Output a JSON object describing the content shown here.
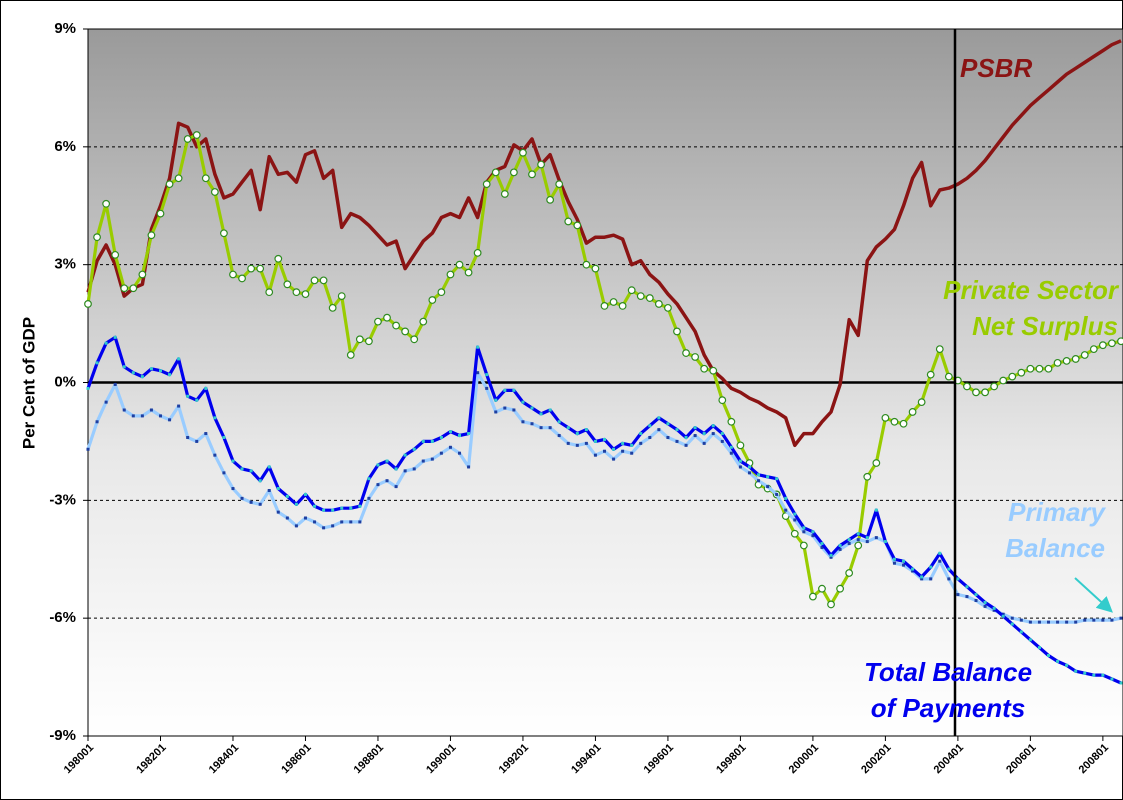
{
  "chart_data": {
    "type": "line",
    "y_label": "Per Cent of GDP",
    "categories": [
      "198001",
      null,
      null,
      null,
      null,
      null,
      null,
      null,
      "198201",
      null,
      null,
      null,
      null,
      null,
      null,
      null,
      "198401",
      null,
      null,
      null,
      null,
      null,
      null,
      null,
      "198601",
      null,
      null,
      null,
      null,
      null,
      null,
      null,
      "198801",
      null,
      null,
      null,
      null,
      null,
      null,
      null,
      "199001",
      null,
      null,
      null,
      null,
      null,
      null,
      null,
      "199201",
      null,
      null,
      null,
      null,
      null,
      null,
      null,
      "199401",
      null,
      null,
      null,
      null,
      null,
      null,
      null,
      "199601",
      null,
      null,
      null,
      null,
      null,
      null,
      null,
      "199801",
      null,
      null,
      null,
      null,
      null,
      null,
      null,
      "200001",
      null,
      null,
      null,
      null,
      null,
      null,
      null,
      "200201",
      null,
      null,
      null,
      null,
      null,
      null,
      null,
      "200401",
      null,
      null,
      null,
      null,
      null,
      null,
      null,
      "200601",
      null,
      null,
      null,
      null,
      null,
      null,
      null,
      "200801",
      null,
      null
    ],
    "ylim": [
      -9,
      9
    ],
    "yticks": [
      {
        "value": -9,
        "label": "-9%"
      },
      {
        "value": -6,
        "label": "-6%"
      },
      {
        "value": -3,
        "label": "-3%"
      },
      {
        "value": 0,
        "label": "0%"
      },
      {
        "value": 3,
        "label": "3%"
      },
      {
        "value": 6,
        "label": "6%"
      },
      {
        "value": 9,
        "label": "9%"
      }
    ],
    "grid": true,
    "series": [
      {
        "name": "PSBR",
        "color": "#8b1414",
        "values": [
          2.3,
          3.1,
          3.5,
          3.0,
          2.2,
          2.4,
          2.5,
          3.9,
          4.5,
          5.2,
          6.6,
          6.5,
          6.0,
          6.2,
          5.3,
          4.7,
          4.8,
          5.1,
          5.4,
          4.4,
          5.75,
          5.3,
          5.35,
          5.1,
          5.8,
          5.9,
          5.2,
          5.4,
          3.95,
          4.3,
          4.2,
          4.0,
          3.75,
          3.5,
          3.6,
          2.9,
          3.25,
          3.6,
          3.8,
          4.2,
          4.3,
          4.2,
          4.7,
          4.2,
          5.1,
          5.4,
          5.5,
          6.05,
          5.9,
          6.2,
          5.55,
          5.8,
          5.15,
          4.6,
          4.15,
          3.55,
          3.7,
          3.7,
          3.75,
          3.65,
          3.0,
          3.1,
          2.75,
          2.55,
          2.25,
          2.0,
          1.65,
          1.3,
          0.7,
          0.3,
          0.1,
          -0.15,
          -0.25,
          -0.4,
          -0.5,
          -0.65,
          -0.75,
          -0.9,
          -1.6,
          -1.3,
          -1.3,
          -1.0,
          -0.75,
          -0.05,
          1.6,
          1.2,
          3.1,
          3.45,
          3.65,
          3.9,
          4.5,
          5.2,
          5.6,
          4.5,
          4.9,
          4.95,
          5.05,
          5.2,
          5.4,
          5.65,
          5.95,
          6.25,
          6.55,
          6.8,
          7.05,
          7.25,
          7.45,
          7.65,
          7.85,
          8.0,
          8.15,
          8.3,
          8.45,
          8.6,
          8.7
        ]
      },
      {
        "name": "Private Sector Net Surplus",
        "color": "#99cc00",
        "values": [
          2.0,
          3.7,
          4.55,
          3.25,
          2.4,
          2.4,
          2.75,
          3.75,
          4.3,
          5.05,
          5.2,
          6.2,
          6.3,
          5.2,
          4.85,
          3.8,
          2.75,
          2.65,
          2.9,
          2.9,
          2.3,
          3.15,
          2.5,
          2.3,
          2.25,
          2.6,
          2.6,
          1.9,
          2.2,
          0.7,
          1.1,
          1.05,
          1.55,
          1.65,
          1.45,
          1.3,
          1.1,
          1.55,
          2.1,
          2.3,
          2.75,
          3.0,
          2.8,
          3.3,
          5.05,
          5.35,
          4.8,
          5.35,
          5.85,
          5.3,
          5.55,
          4.65,
          5.05,
          4.1,
          4.0,
          3.0,
          2.9,
          1.95,
          2.05,
          1.95,
          2.35,
          2.2,
          2.15,
          2.0,
          1.9,
          1.3,
          0.75,
          0.65,
          0.35,
          0.3,
          -0.45,
          -1.0,
          -1.6,
          -2.05,
          -2.6,
          -2.7,
          -2.85,
          -3.4,
          -3.85,
          -4.15,
          -5.45,
          -5.25,
          -5.65,
          -5.25,
          -4.85,
          -4.15,
          -2.4,
          -2.05,
          -0.9,
          -1.0,
          -1.05,
          -0.75,
          -0.5,
          0.2,
          0.85,
          0.15,
          0.05,
          -0.1,
          -0.25,
          -0.25,
          -0.1,
          0.05,
          0.15,
          0.25,
          0.35,
          0.35,
          0.35,
          0.5,
          0.55,
          0.6,
          0.7,
          0.85,
          0.95,
          1.0,
          1.05
        ]
      },
      {
        "name": "Primary Balance",
        "color": "#99ccff",
        "values": [
          -1.7,
          -1.0,
          -0.5,
          -0.05,
          -0.7,
          -0.85,
          -0.85,
          -0.7,
          -0.85,
          -0.95,
          -0.6,
          -1.4,
          -1.5,
          -1.3,
          -1.85,
          -2.3,
          -2.7,
          -2.95,
          -3.05,
          -3.1,
          -2.75,
          -3.3,
          -3.45,
          -3.65,
          -3.45,
          -3.55,
          -3.7,
          -3.65,
          -3.55,
          -3.55,
          -3.55,
          -2.95,
          -2.6,
          -2.5,
          -2.65,
          -2.25,
          -2.2,
          -2.0,
          -1.95,
          -1.8,
          -1.65,
          -1.8,
          -2.15,
          0.25,
          -0.15,
          -0.75,
          -0.65,
          -0.7,
          -1.0,
          -1.05,
          -1.15,
          -1.15,
          -1.35,
          -1.55,
          -1.6,
          -1.55,
          -1.85,
          -1.75,
          -1.95,
          -1.75,
          -1.8,
          -1.55,
          -1.4,
          -1.2,
          -1.4,
          -1.5,
          -1.6,
          -1.35,
          -1.55,
          -1.3,
          -1.5,
          -1.8,
          -2.15,
          -2.3,
          -2.5,
          -2.65,
          -2.85,
          -3.25,
          -3.5,
          -3.8,
          -3.9,
          -4.2,
          -4.45,
          -4.25,
          -4.1,
          -4.0,
          -4.05,
          -3.95,
          -4.05,
          -4.6,
          -4.65,
          -4.8,
          -5.0,
          -5.0,
          -4.55,
          -5.0,
          -5.4,
          -5.45,
          -5.55,
          -5.7,
          -5.8,
          -5.9,
          -6.0,
          -6.05,
          -6.1,
          -6.1,
          -6.1,
          -6.1,
          -6.1,
          -6.1,
          -6.05,
          -6.05,
          -6.05,
          -6.05,
          -6.0
        ]
      },
      {
        "name": "Total Balance of Payments",
        "color": "#0000ee",
        "values": [
          -0.15,
          0.5,
          1.0,
          1.15,
          0.4,
          0.25,
          0.15,
          0.35,
          0.3,
          0.2,
          0.6,
          -0.35,
          -0.45,
          -0.15,
          -0.9,
          -1.4,
          -2.0,
          -2.2,
          -2.25,
          -2.5,
          -2.15,
          -2.7,
          -2.9,
          -3.1,
          -2.85,
          -3.15,
          -3.25,
          -3.25,
          -3.2,
          -3.2,
          -3.15,
          -2.45,
          -2.1,
          -2.0,
          -2.2,
          -1.85,
          -1.7,
          -1.5,
          -1.5,
          -1.4,
          -1.25,
          -1.35,
          -1.3,
          0.9,
          0.2,
          -0.45,
          -0.2,
          -0.2,
          -0.5,
          -0.65,
          -0.8,
          -0.7,
          -1.0,
          -1.15,
          -1.3,
          -1.2,
          -1.5,
          -1.45,
          -1.7,
          -1.55,
          -1.6,
          -1.3,
          -1.1,
          -0.9,
          -1.05,
          -1.2,
          -1.4,
          -1.15,
          -1.3,
          -1.1,
          -1.3,
          -1.65,
          -2.0,
          -2.15,
          -2.35,
          -2.4,
          -2.45,
          -2.95,
          -3.35,
          -3.7,
          -3.8,
          -4.1,
          -4.4,
          -4.15,
          -4.0,
          -3.85,
          -3.95,
          -3.25,
          -4.05,
          -4.5,
          -4.55,
          -4.75,
          -4.95,
          -4.7,
          -4.35,
          -4.75,
          -5.0,
          -5.2,
          -5.4,
          -5.6,
          -5.75,
          -5.95,
          -6.15,
          -6.35,
          -6.55,
          -6.75,
          -6.95,
          -7.1,
          -7.2,
          -7.35,
          -7.4,
          -7.45,
          -7.45,
          -7.55,
          -7.65
        ]
      }
    ]
  }
}
